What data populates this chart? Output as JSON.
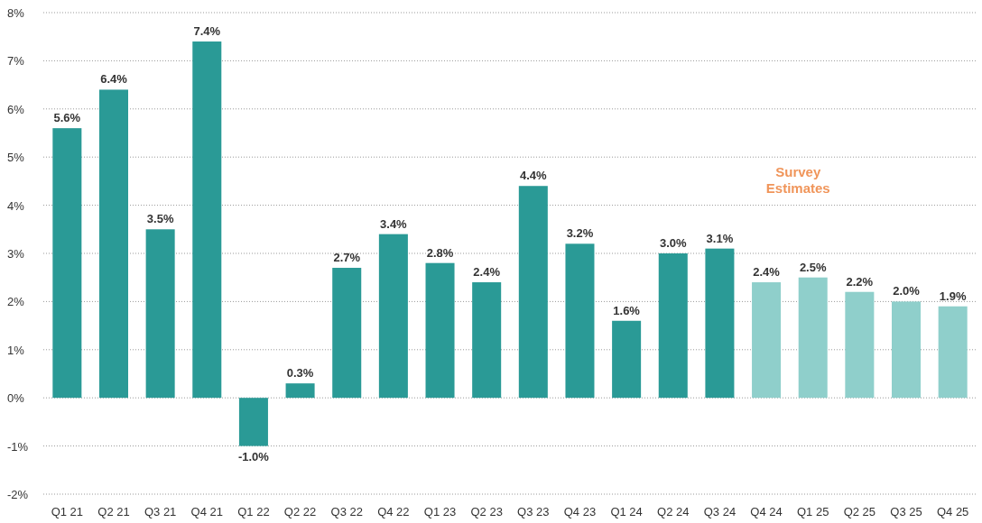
{
  "chart_data": {
    "type": "bar",
    "categories": [
      "Q1 21",
      "Q2 21",
      "Q3 21",
      "Q4 21",
      "Q1 22",
      "Q2 22",
      "Q3 22",
      "Q4 22",
      "Q1 23",
      "Q2 23",
      "Q3 23",
      "Q4 23",
      "Q1 24",
      "Q2 24",
      "Q3 24",
      "Q4 24",
      "Q1 25",
      "Q2 25",
      "Q3 25",
      "Q4 25"
    ],
    "values": [
      5.6,
      6.4,
      3.5,
      7.4,
      -1.0,
      0.3,
      2.7,
      3.4,
      2.8,
      2.4,
      4.4,
      3.2,
      1.6,
      3.0,
      3.1,
      2.4,
      2.5,
      2.2,
      2.0,
      1.9
    ],
    "value_labels": [
      "5.6%",
      "6.4%",
      "3.5%",
      "7.4%",
      "-1.0%",
      "0.3%",
      "2.7%",
      "3.4%",
      "2.8%",
      "2.4%",
      "4.4%",
      "3.2%",
      "1.6%",
      "3.0%",
      "3.1%",
      "2.4%",
      "2.5%",
      "2.2%",
      "2.0%",
      "1.9%"
    ],
    "colors": [
      "#2a9a96",
      "#2a9a96",
      "#2a9a96",
      "#2a9a96",
      "#2a9a96",
      "#2a9a96",
      "#2a9a96",
      "#2a9a96",
      "#2a9a96",
      "#2a9a96",
      "#2a9a96",
      "#2a9a96",
      "#2a9a96",
      "#2a9a96",
      "#2a9a96",
      "#8fcfcb",
      "#8fcfcb",
      "#8fcfcb",
      "#8fcfcb",
      "#8fcfcb"
    ],
    "ylim": [
      -2,
      8
    ],
    "yticks": [
      {
        "value": -2,
        "label": "-2%"
      },
      {
        "value": -1,
        "label": "-1%"
      },
      {
        "value": 0,
        "label": "0%"
      },
      {
        "value": 1,
        "label": "1%"
      },
      {
        "value": 2,
        "label": "2%"
      },
      {
        "value": 3,
        "label": "3%"
      },
      {
        "value": 4,
        "label": "4%"
      },
      {
        "value": 5,
        "label": "5%"
      },
      {
        "value": 6,
        "label": "6%"
      },
      {
        "value": 7,
        "label": "7%"
      },
      {
        "value": 8,
        "label": "8%"
      }
    ],
    "grid": "y",
    "annotations": [
      "Survey Estimates"
    ]
  }
}
